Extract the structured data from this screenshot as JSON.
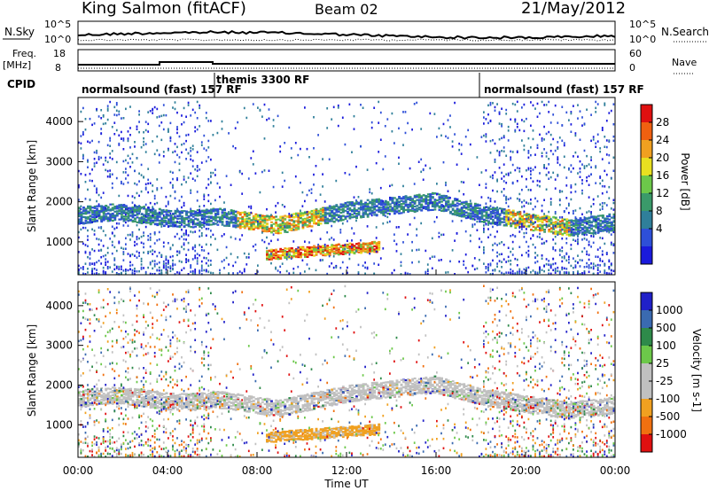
{
  "header": {
    "station": "King Salmon (fitACF)",
    "beam": "Beam 02",
    "date": "21/May/2012"
  },
  "top_panels": {
    "nsky_label": "N.Sky",
    "nsky_ticks": [
      "10^5",
      "10^0"
    ],
    "nsearch_label": "N.Search",
    "nsearch_ticks": [
      "10^5",
      "10^0"
    ],
    "freq_label_1": "Freq.",
    "freq_label_2": "[MHz]",
    "freq_ticks": [
      "18",
      "8"
    ],
    "nave_label": "Nave",
    "nave_ticks": [
      "60",
      "0"
    ],
    "cpid_label": "CPID"
  },
  "cpid_segments": [
    {
      "label": "normalsound (fast) 157 RF",
      "start_h": 0.0
    },
    {
      "label": "themis 3300 RF",
      "start_h": 6.05
    },
    {
      "label": "normalsound (fast) 157 RF",
      "start_h": 18.0
    }
  ],
  "chart_data": [
    {
      "type": "heatmap",
      "panel": "power",
      "ylabel": "Slant Range [km]",
      "yticks": [
        "1000",
        "2000",
        "3000",
        "4000"
      ],
      "ylim": [
        180,
        4600
      ],
      "xlim": [
        0,
        24
      ],
      "colorbar": {
        "label": "Power [dB]",
        "ticks": [
          "4",
          "8",
          "12",
          "16",
          "20",
          "24",
          "28"
        ],
        "range": [
          0,
          30
        ]
      }
    },
    {
      "type": "heatmap",
      "panel": "velocity",
      "ylabel": "Slant Range [km]",
      "yticks": [
        "1000",
        "2000",
        "3000",
        "4000"
      ],
      "ylim": [
        180,
        4600
      ],
      "xlim": [
        0,
        24
      ],
      "colorbar": {
        "label": "Velocity [m s-1]",
        "ticks": [
          "1000",
          "500",
          "100",
          "25",
          "-25",
          "-100",
          "-500",
          "-1000"
        ]
      }
    }
  ],
  "xaxis": {
    "ticks": [
      "00:00",
      "04:00",
      "08:00",
      "12:00",
      "16:00",
      "20:00",
      "00:00"
    ],
    "label": "Time UT"
  },
  "colors": {
    "power_scale": [
      "#1a1adc",
      "#2e4fd8",
      "#2f7f9a",
      "#3a9a6a",
      "#6cc84a",
      "#e8e020",
      "#f0a020",
      "#f06010",
      "#e01010"
    ],
    "velocity_scale": [
      "#2020c8",
      "#3a6ab0",
      "#2e8a4a",
      "#6cc84a",
      "#c0c0c0",
      "#c0c0c0",
      "#f0a020",
      "#f07010",
      "#e01010"
    ]
  }
}
